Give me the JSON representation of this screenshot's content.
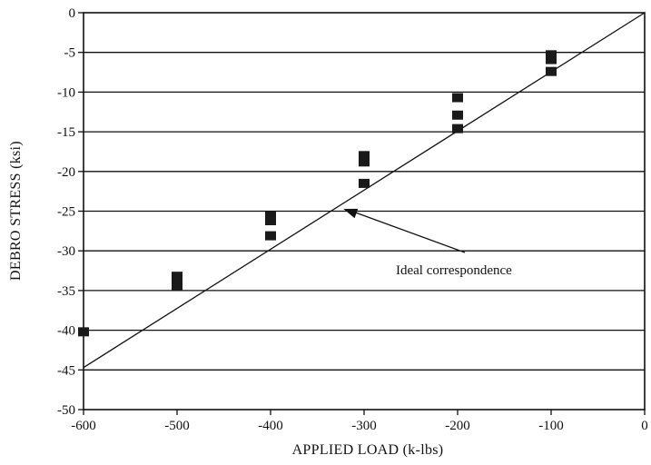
{
  "chart_data": {
    "type": "scatter",
    "title": "",
    "xlabel": "APPLIED LOAD (k-lbs)",
    "ylabel": "DEBRO STRESS (ksi)",
    "xlim": [
      -600,
      0
    ],
    "ylim": [
      -50,
      0
    ],
    "x_ticks": [
      -600,
      -500,
      -400,
      -300,
      -200,
      -100,
      0
    ],
    "x_tick_labels": [
      "-600",
      "-500",
      "-400",
      "-300",
      "-200",
      "-100",
      "0"
    ],
    "y_ticks": [
      0,
      -5,
      -10,
      -15,
      -20,
      -25,
      -30,
      -35,
      -40,
      -45,
      -50
    ],
    "y_tick_labels": [
      "0",
      "-5",
      "-10",
      "-15",
      "-20",
      "-25",
      "-30",
      "-35",
      "-40",
      "-45",
      "-50"
    ],
    "grid": "horizontal",
    "series": [
      {
        "marker": "square",
        "x": [
          -600,
          -500,
          -500,
          -500,
          -400,
          -400,
          -400,
          -300,
          -300,
          -300,
          -200,
          -200,
          -200,
          -100,
          -100,
          -100
        ],
        "y": [
          -40.2,
          -33.2,
          -33.9,
          -34.4,
          -25.6,
          -26.2,
          -28.1,
          -18.0,
          -18.8,
          -21.5,
          -10.7,
          -12.9,
          -14.6,
          -5.3,
          -5.9,
          -7.4
        ]
      }
    ],
    "reference_line": {
      "x": [
        -600,
        0
      ],
      "y": [
        -44.7,
        0
      ]
    },
    "annotations": [
      {
        "text": "Ideal correspondence",
        "arrow_to": {
          "x": -325,
          "y": -24.6
        }
      }
    ]
  }
}
